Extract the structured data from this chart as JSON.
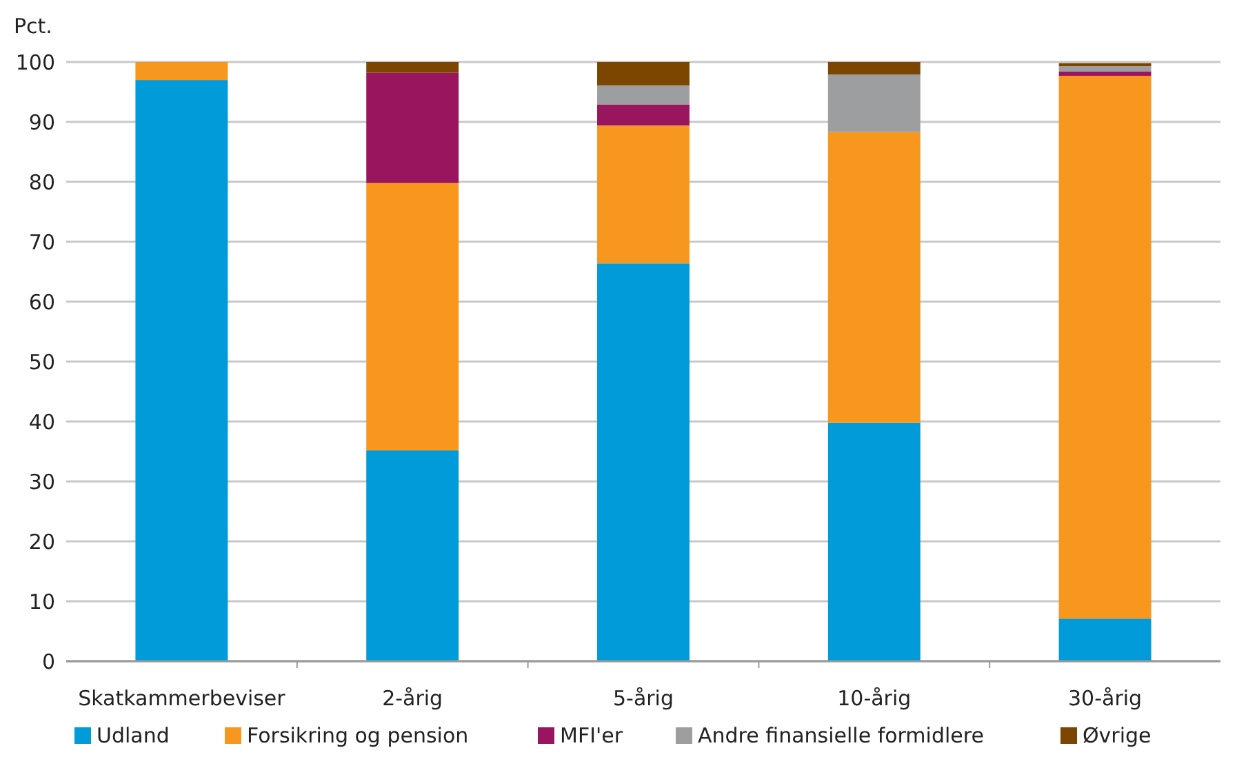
{
  "chart_data": {
    "type": "bar",
    "stacked": true,
    "ylabel": "Pct.",
    "categories": [
      "Skatkammerbeviser",
      "2-årig",
      "5-årig",
      "10-årig",
      "30-årig"
    ],
    "series": [
      {
        "name": "Udland",
        "color": "#009bd8",
        "values": [
          97,
          35.2,
          66.4,
          39.8,
          7.1
        ]
      },
      {
        "name": "Forsikring og pension",
        "color": "#f7971e",
        "values": [
          3,
          44.6,
          23,
          48.5,
          90.6
        ]
      },
      {
        "name": "MFI'er",
        "color": "#99155d",
        "values": [
          0,
          18.4,
          3.5,
          0,
          0.7
        ]
      },
      {
        "name": "Andre finansielle formidlere",
        "color": "#9d9ea0",
        "values": [
          0,
          0,
          3.2,
          9.6,
          0.9
        ]
      },
      {
        "name": "Øvrige",
        "color": "#7d4600",
        "values": [
          0,
          1.8,
          3.9,
          2.1,
          0.5
        ]
      }
    ],
    "ylim": [
      0,
      100
    ],
    "yticks": [
      0,
      10,
      20,
      30,
      40,
      50,
      60,
      70,
      80,
      90,
      100
    ],
    "grid": "y",
    "legend": "bottom"
  }
}
